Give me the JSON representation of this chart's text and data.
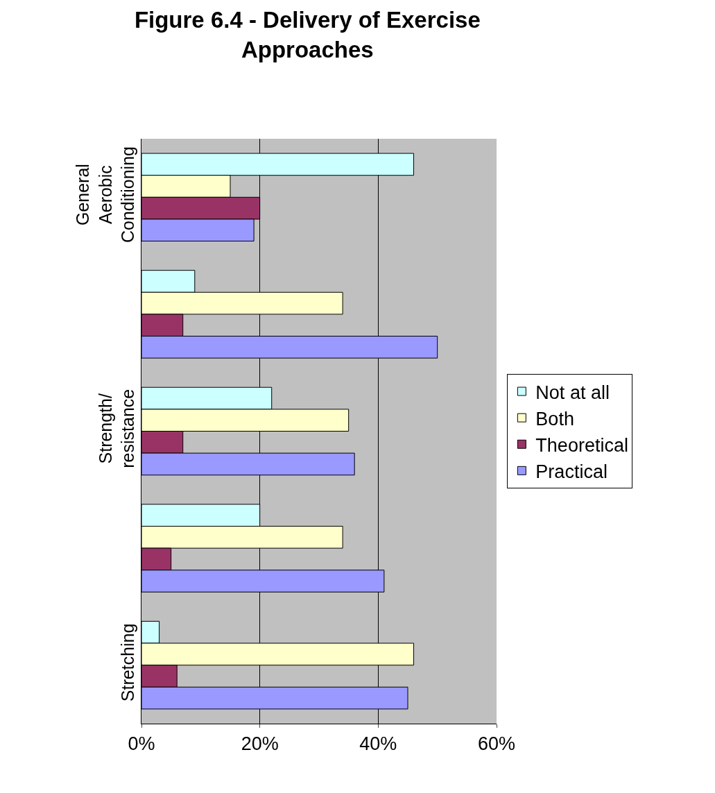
{
  "chart_data": {
    "type": "bar",
    "orientation": "horizontal",
    "title": "Figure 6.4 - Delivery of Exercise\nApproaches",
    "categories": [
      "General\nAerobic\nConditioning",
      null,
      "Strength/\nresistance",
      null,
      "Stretching"
    ],
    "series": [
      {
        "name": "Not at all",
        "color": "#ccffff",
        "values": [
          46,
          9,
          22,
          20,
          3
        ]
      },
      {
        "name": "Both",
        "color": "#ffffcc",
        "values": [
          15,
          34,
          35,
          34,
          46
        ]
      },
      {
        "name": "Theoretical",
        "color": "#993366",
        "values": [
          20,
          7,
          7,
          5,
          6
        ]
      },
      {
        "name": "Practical",
        "color": "#9999ff",
        "values": [
          19,
          50,
          36,
          41,
          45
        ]
      }
    ],
    "xlim": [
      0,
      60
    ],
    "xticks": [
      {
        "value": 0,
        "label": "0%"
      },
      {
        "value": 20,
        "label": "20%"
      },
      {
        "value": 40,
        "label": "40%"
      },
      {
        "value": 60,
        "label": "60%"
      }
    ],
    "grid": "x",
    "legend": "right"
  }
}
